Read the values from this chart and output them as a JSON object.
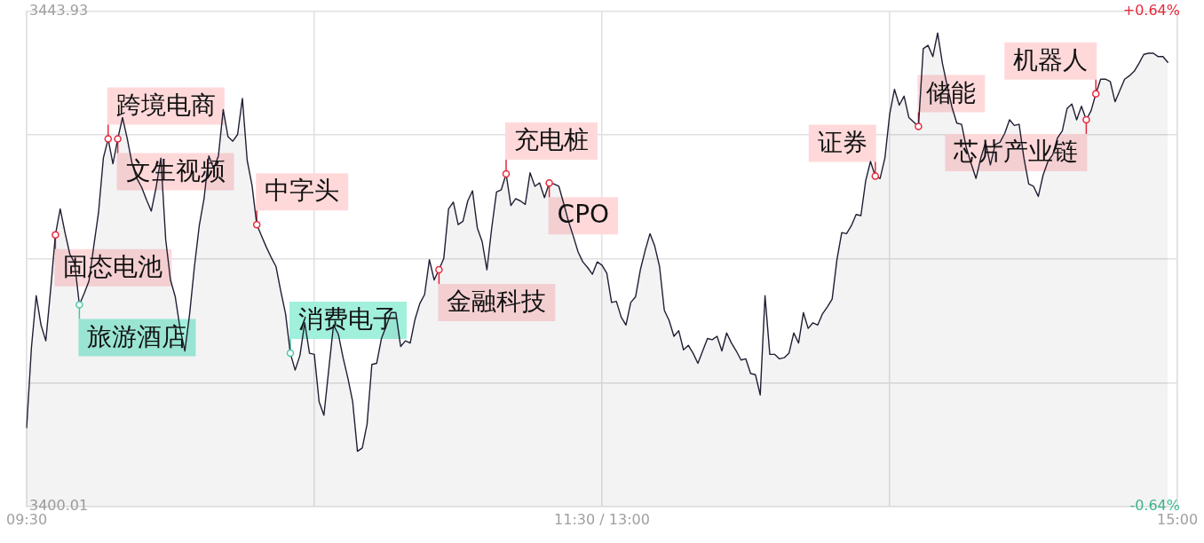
{
  "chart_data": {
    "type": "area",
    "categories": [
      "09:30",
      null,
      null,
      null,
      null,
      null,
      null,
      null,
      null,
      null,
      null,
      null,
      null,
      null,
      null,
      null,
      null,
      null,
      null,
      null,
      null,
      null,
      null,
      null,
      null,
      null,
      null,
      null,
      null,
      null,
      null,
      null,
      null,
      null,
      null,
      null,
      null,
      null,
      null,
      null,
      null,
      null,
      null,
      null,
      null,
      null,
      null,
      null,
      null,
      null,
      null,
      null,
      null,
      null,
      null,
      null,
      null,
      null,
      null,
      null,
      null,
      null,
      null,
      null,
      null,
      null,
      null,
      null,
      null,
      null,
      null,
      null,
      null,
      null,
      null,
      null,
      null,
      null,
      null,
      null,
      null,
      null,
      null,
      null,
      null,
      null,
      null,
      null,
      null,
      null,
      null,
      null,
      null,
      null,
      null,
      null,
      null,
      null,
      null,
      null,
      null,
      null,
      null,
      null,
      null,
      null,
      null,
      null,
      null,
      null,
      null,
      null,
      null,
      null,
      null,
      null,
      null,
      null,
      null,
      null,
      "11:30 / 13:00",
      null,
      null,
      null,
      null,
      null,
      null,
      null,
      null,
      null,
      null,
      null,
      null,
      null,
      null,
      null,
      null,
      null,
      null,
      null,
      null,
      null,
      null,
      null,
      null,
      null,
      null,
      null,
      null,
      null,
      null,
      null,
      null,
      null,
      null,
      null,
      null,
      null,
      null,
      null,
      null,
      null,
      null,
      null,
      null,
      null,
      null,
      null,
      null,
      null,
      null,
      null,
      null,
      null,
      null,
      null,
      null,
      null,
      null,
      null,
      null,
      null,
      null,
      null,
      null,
      null,
      null,
      null,
      null,
      null,
      null,
      null,
      null,
      null,
      null,
      null,
      null,
      null,
      null,
      null,
      null,
      null,
      null,
      null,
      null,
      null,
      null,
      null,
      null,
      null,
      null,
      null,
      null,
      null,
      null,
      null,
      null,
      null,
      null,
      null,
      null,
      null,
      null,
      null,
      null,
      null,
      null,
      null,
      null,
      null,
      null,
      null,
      null,
      null,
      null,
      null,
      null,
      null,
      null,
      null,
      "15:00"
    ],
    "series": [
      {
        "color": "#1f1f33",
        "values": [
          3407.0,
          3414.1,
          3418.7,
          3416.1,
          3414.7,
          3419.2,
          3424.1,
          3426.4,
          3424.3,
          3422.4,
          3421.6,
          3417.9,
          3418.9,
          3420.0,
          3423.1,
          3426.1,
          3430.9,
          3432.6,
          3430.4,
          3432.6,
          3434.5,
          3432.6,
          3430.4,
          3429.1,
          3428.3,
          3427.2,
          3426.2,
          3428.3,
          3430.9,
          3423.7,
          3420.1,
          3418.6,
          3415.8,
          3413.8,
          3417.1,
          3421.3,
          3424.9,
          3427.3,
          3431.1,
          3430.0,
          3431.1,
          3435.2,
          3432.8,
          3432.4,
          3433.0,
          3436.2,
          3430.7,
          3428.5,
          3425.0,
          3424.0,
          3423.0,
          3422.1,
          3421.3,
          3419.1,
          3417.1,
          3413.6,
          3412.1,
          3413.4,
          3416.3,
          3413.6,
          3413.5,
          3409.3,
          3408.1,
          3412.1,
          3416.1,
          3415.3,
          3413.2,
          3411.4,
          3409.3,
          3404.9,
          3405.2,
          3407.3,
          3412.6,
          3412.7,
          3414.9,
          3416.0,
          3417.2,
          3417.2,
          3414.2,
          3414.7,
          3414.5,
          3416.6,
          3418.0,
          3418.8,
          3421.9,
          3420.1,
          3421.0,
          3422.0,
          3426.4,
          3427.0,
          3425.0,
          3425.3,
          3427.1,
          3428.0,
          3424.7,
          3423.5,
          3421.0,
          3424.7,
          3427.9,
          3428.1,
          3429.5,
          3426.7,
          3427.3,
          3427.1,
          3426.8,
          3429.6,
          3428.4,
          3428.7,
          3427.4,
          3428.7,
          3428.6,
          3428.4,
          3426.9,
          3425.3,
          3424.0,
          3422.6,
          3421.7,
          3421.2,
          3420.6,
          3421.7,
          3421.4,
          3420.7,
          3418.1,
          3418.2,
          3416.8,
          3416.1,
          3418.1,
          3418.6,
          3421.0,
          3422.7,
          3424.2,
          3423.1,
          3421.3,
          3417.4,
          3416.5,
          3415.1,
          3415.6,
          3413.9,
          3414.3,
          3413.6,
          3412.7,
          3413.8,
          3414.9,
          3414.8,
          3415.1,
          3413.8,
          3415.4,
          3414.5,
          3413.8,
          3413.0,
          3413.1,
          3411.8,
          3411.7,
          3409.9,
          3418.7,
          3413.5,
          3413.5,
          3413.1,
          3413.2,
          3413.6,
          3415.4,
          3414.5,
          3417.2,
          3415.8,
          3416.3,
          3416.1,
          3417.1,
          3417.7,
          3418.4,
          3421.9,
          3424.3,
          3424.2,
          3424.9,
          3425.9,
          3425.8,
          3428.9,
          3430.6,
          3429.3,
          3429.1,
          3430.9,
          3434.8,
          3437.0,
          3435.6,
          3436.4,
          3434.5,
          3434.1,
          3433.7,
          3440.6,
          3440.9,
          3439.9,
          3442.0,
          3439.3,
          3437.3,
          3435.4,
          3434.0,
          3433.9,
          3431.8,
          3430.4,
          3429.1,
          3430.9,
          3432.3,
          3430.3,
          3432.1,
          3432.3,
          3433.1,
          3434.3,
          3433.8,
          3433.9,
          3430.9,
          3428.6,
          3428.4,
          3427.5,
          3429.4,
          3430.6,
          3431.2,
          3432.7,
          3433.3,
          3435.3,
          3435.7,
          3434.3,
          3435.5,
          3434.3,
          3435.1,
          3436.6,
          3437.9,
          3437.9,
          3437.7,
          3435.9,
          3436.9,
          3437.9,
          3438.2,
          3438.6,
          3439.3,
          3440.1,
          3440.2,
          3440.2,
          3439.9,
          3439.9,
          3439.4,
          null,
          null
        ]
      },
      {
        "type": "scatter",
        "color": "#e8283c",
        "values": [
          null,
          null,
          null,
          null,
          null,
          null,
          3424.1,
          null,
          null,
          null,
          null,
          null,
          null,
          null,
          null,
          null,
          null,
          3432.6,
          null,
          3432.6,
          null,
          null,
          null,
          null,
          null,
          null,
          null,
          null,
          null,
          null,
          null,
          null,
          null,
          null,
          null,
          null,
          null,
          null,
          null,
          null,
          null,
          null,
          null,
          null,
          null,
          null,
          null,
          null,
          3425.0,
          null,
          null,
          null,
          null,
          null,
          null,
          null,
          null,
          null,
          null,
          null,
          null,
          null,
          null,
          null,
          null,
          null,
          null,
          null,
          null,
          null,
          null,
          null,
          null,
          null,
          null,
          null,
          null,
          null,
          null,
          null,
          null,
          null,
          null,
          null,
          null,
          null,
          3421.0,
          null,
          null,
          null,
          null,
          null,
          null,
          null,
          null,
          null,
          null,
          null,
          null,
          null,
          3429.5,
          null,
          null,
          null,
          null,
          null,
          null,
          null,
          null,
          3428.7,
          null,
          null,
          null,
          null,
          null,
          null,
          null,
          null,
          null,
          null,
          null,
          null,
          null,
          null,
          null,
          null,
          null,
          null,
          null,
          null,
          null,
          null,
          null,
          null,
          null,
          null,
          null,
          null,
          null,
          null,
          null,
          null,
          null,
          null,
          null,
          null,
          null,
          null,
          null,
          null,
          null,
          null,
          null,
          null,
          null,
          null,
          null,
          null,
          null,
          null,
          null,
          null,
          null,
          null,
          null,
          null,
          null,
          null,
          null,
          null,
          null,
          null,
          null,
          null,
          null,
          null,
          null,
          3429.3,
          null,
          null,
          null,
          null,
          null,
          null,
          null,
          null,
          3433.7,
          null,
          null,
          null,
          null,
          null,
          null,
          null,
          null,
          null,
          null,
          null,
          null,
          null,
          null,
          null,
          null,
          null,
          null,
          null,
          null,
          null,
          null,
          null,
          null,
          null,
          null,
          null,
          null,
          null,
          null,
          null,
          null,
          null,
          null,
          3434.3,
          null,
          3436.6,
          null,
          null,
          null,
          null,
          null,
          null,
          null,
          null,
          null,
          null,
          null,
          null,
          null,
          null,
          null,
          null,
          null
        ]
      },
      {
        "type": "scatter",
        "color": "#4ec9a6",
        "values": [
          null,
          null,
          null,
          null,
          null,
          null,
          null,
          null,
          null,
          null,
          null,
          3417.9,
          null,
          null,
          null,
          null,
          null,
          null,
          null,
          null,
          null,
          null,
          null,
          null,
          null,
          null,
          null,
          null,
          null,
          null,
          null,
          null,
          null,
          null,
          null,
          null,
          null,
          null,
          null,
          null,
          null,
          null,
          null,
          null,
          null,
          null,
          null,
          null,
          null,
          null,
          null,
          null,
          null,
          null,
          null,
          3413.6,
          null,
          null,
          null,
          null,
          null,
          null,
          null,
          null,
          null,
          null,
          null,
          null,
          null,
          null,
          null,
          null,
          null,
          null,
          null,
          null,
          null,
          null,
          null,
          null,
          null,
          null,
          null,
          null,
          null,
          null,
          null,
          null,
          null,
          null,
          null,
          null,
          null,
          null,
          null,
          null,
          null,
          null,
          null,
          null,
          null,
          null,
          null,
          null,
          null,
          null,
          null,
          null,
          null,
          null,
          null,
          null,
          null,
          null,
          null,
          null,
          null,
          null,
          null,
          null,
          null,
          null,
          null,
          null,
          null,
          null,
          null,
          null,
          null,
          null,
          null,
          null,
          null,
          null,
          null,
          null,
          null,
          null,
          null,
          null,
          null,
          null,
          null,
          null,
          null,
          null,
          null,
          null,
          null,
          null,
          null,
          null,
          null,
          null,
          null,
          null,
          null,
          null,
          null,
          null,
          null,
          null,
          null,
          null,
          null,
          null,
          null,
          null,
          null,
          null,
          null,
          null,
          null,
          null,
          null,
          null,
          null,
          null,
          null,
          null,
          null,
          null,
          null,
          null,
          null,
          null,
          null,
          null,
          null,
          null,
          null,
          null,
          null,
          null,
          null,
          null,
          null,
          null,
          null,
          null,
          null,
          null,
          null,
          null,
          null,
          null,
          null,
          null,
          null,
          null,
          null,
          null,
          null,
          null,
          null,
          null,
          null,
          null,
          null,
          null,
          null,
          null,
          null,
          null,
          null,
          null,
          null,
          null,
          null,
          null,
          null,
          null,
          null,
          null,
          null,
          null,
          null,
          null,
          null,
          null,
          null
        ]
      }
    ],
    "ylim": [
      3400.01,
      3443.93
    ],
    "yticks": [
      3400.01,
      {
        "value": 3410.99,
        "label": null
      },
      {
        "value": 3421.97,
        "label": null
      },
      {
        "value": 3432.95,
        "label": null
      },
      3443.93
    ],
    "y2lim": [
      -0.64,
      0.64
    ],
    "y2ticks": [
      {
        "value": -0.64,
        "label": "-0.64%"
      },
      {
        "value": 0.64,
        "label": "+0.64%"
      }
    ],
    "grid": true,
    "annotations": [
      "固态电池",
      "跨境电商",
      "文生视频",
      "中字头",
      "金融科技",
      "充电桩",
      "CPO",
      "证券",
      "储能",
      "芯片产业链",
      "机器人",
      "旅游酒店",
      "消费电子"
    ]
  }
}
